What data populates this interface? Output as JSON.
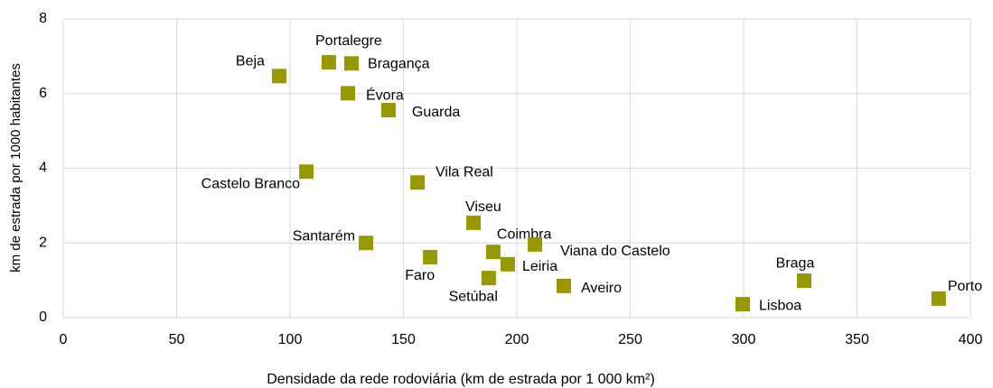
{
  "chart_data": {
    "type": "scatter",
    "xlabel": "Densidade da rede rodoviária (km de estrada por 1 000 km²)",
    "ylabel": "km de estrada por 1000 habitantes",
    "labels": [
      "Beja",
      "Portalegre",
      "Bragança",
      "Évora",
      "Guarda",
      "Castelo Branco",
      "Vila Real",
      "Viseu",
      "Santarém",
      "Faro",
      "Coimbra",
      "Viana do Castelo",
      "Leiria",
      "Setúbal",
      "Aveiro",
      "Lisboa",
      "Braga",
      "Porto"
    ],
    "x": [
      95.2,
      117.1,
      127.1,
      125.5,
      143.4,
      107.2,
      156.2,
      180.9,
      133.5,
      161.8,
      189.6,
      208.0,
      196.0,
      187.6,
      220.7,
      299.6,
      326.7,
      386.0
    ],
    "values": [
      6.47,
      6.84,
      6.81,
      6.01,
      5.56,
      3.91,
      3.62,
      2.54,
      2.0,
      1.62,
      1.76,
      1.96,
      1.43,
      1.06,
      0.85,
      0.36,
      0.99,
      0.51
    ],
    "color": "#989800",
    "xlim": [
      0,
      400
    ],
    "xticks": [
      0,
      50,
      100,
      150,
      200,
      250,
      300,
      350,
      400
    ],
    "ylim": [
      0,
      8
    ],
    "yticks": [
      0,
      2,
      4,
      6,
      8
    ],
    "grid": true
  }
}
